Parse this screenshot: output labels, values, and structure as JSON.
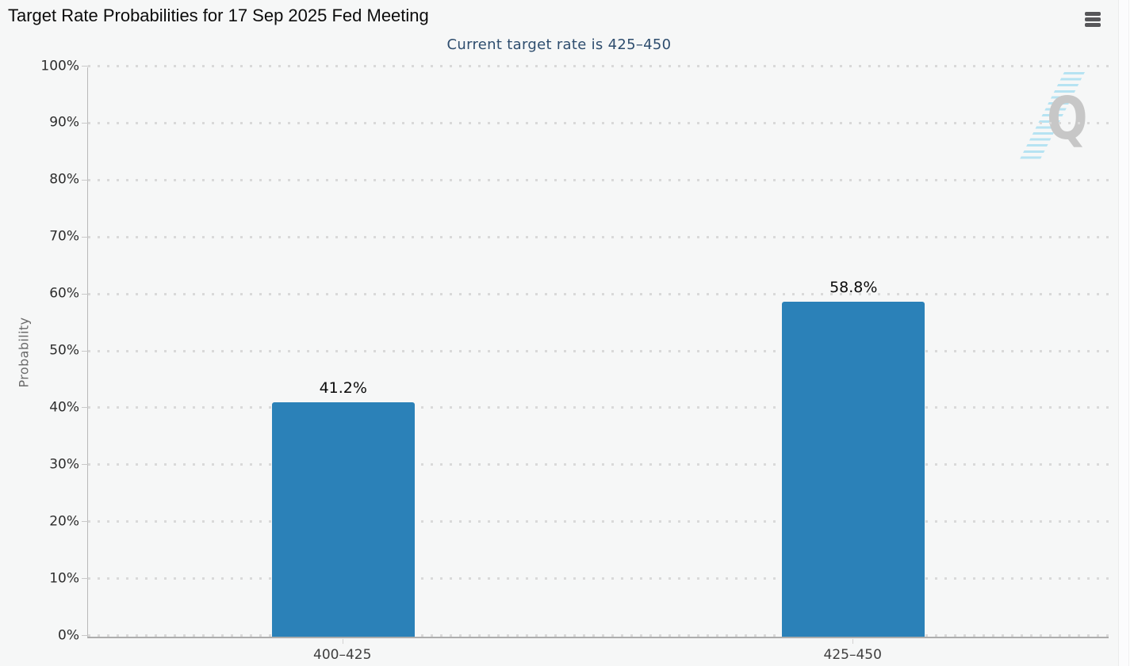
{
  "header": {
    "title": "Target Rate Probabilities for 17 Sep 2025 Fed Meeting"
  },
  "toolbar": {
    "menu_icon": "hamburger"
  },
  "chart_data": {
    "type": "bar",
    "title": "Target Rate Probabilities for 17 Sep 2025 Fed Meeting",
    "subtitle": "Current target rate is 425–450",
    "categories": [
      "400–425",
      "425–450"
    ],
    "series": [
      {
        "name": "Probability",
        "values": [
          41.2,
          58.8
        ]
      }
    ],
    "value_labels": [
      "41.2%",
      "58.8%"
    ],
    "xlabel": "",
    "ylabel": "Probability",
    "ylim": [
      0,
      100
    ],
    "ytick_step": 10,
    "ytick_labels": [
      "0%",
      "10%",
      "20%",
      "30%",
      "40%",
      "50%",
      "60%",
      "70%",
      "80%",
      "90%",
      "100%"
    ],
    "grid": "horizontal-dotted",
    "legend": "none",
    "bar_color": "#2b81b8",
    "watermark_letter": "Q"
  },
  "colors": {
    "page_bg": "#f6f7f7",
    "bar": "#2b81b8",
    "subtitle_text": "#2e4d6e",
    "grid_dot": "#d9d9d9",
    "axis_line": "#adadad",
    "axis_text": "#2d2d2d",
    "ylabel_text": "#6a6a6a",
    "watermark_q": "#c7c7c7",
    "watermark_stripes": "#b6e3f2",
    "menu_icon": "#57575a"
  }
}
